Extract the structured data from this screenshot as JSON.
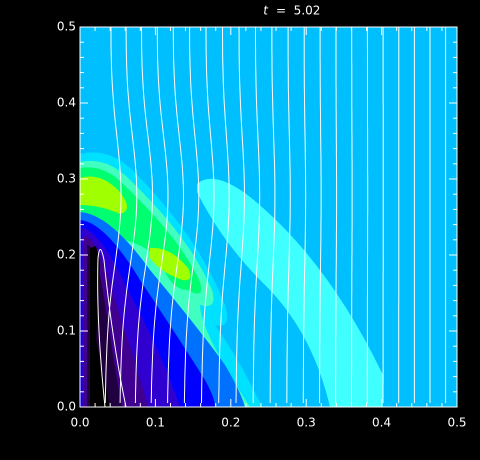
{
  "chart_data": {
    "type": "contour",
    "title_symbol": "t",
    "title_rest": "=  5.02",
    "xlim": [
      0,
      0.5
    ],
    "ylim": [
      0,
      0.5
    ],
    "xticks": [
      {
        "value": 0,
        "label": "0.0"
      },
      {
        "value": 0.1,
        "label": "0.1"
      },
      {
        "value": 0.2,
        "label": "0.2"
      },
      {
        "value": 0.3,
        "label": "0.3"
      },
      {
        "value": 0.4,
        "label": "0.4"
      },
      {
        "value": 0.5,
        "label": "0.5"
      }
    ],
    "yticks": [
      {
        "value": 0,
        "label": "0.0"
      },
      {
        "value": 0.1,
        "label": "0.1"
      },
      {
        "value": 0.2,
        "label": "0.2"
      },
      {
        "value": 0.3,
        "label": "0.3"
      },
      {
        "value": 0.4,
        "label": "0.4"
      },
      {
        "value": 0.5,
        "label": "0.5"
      }
    ]
  }
}
